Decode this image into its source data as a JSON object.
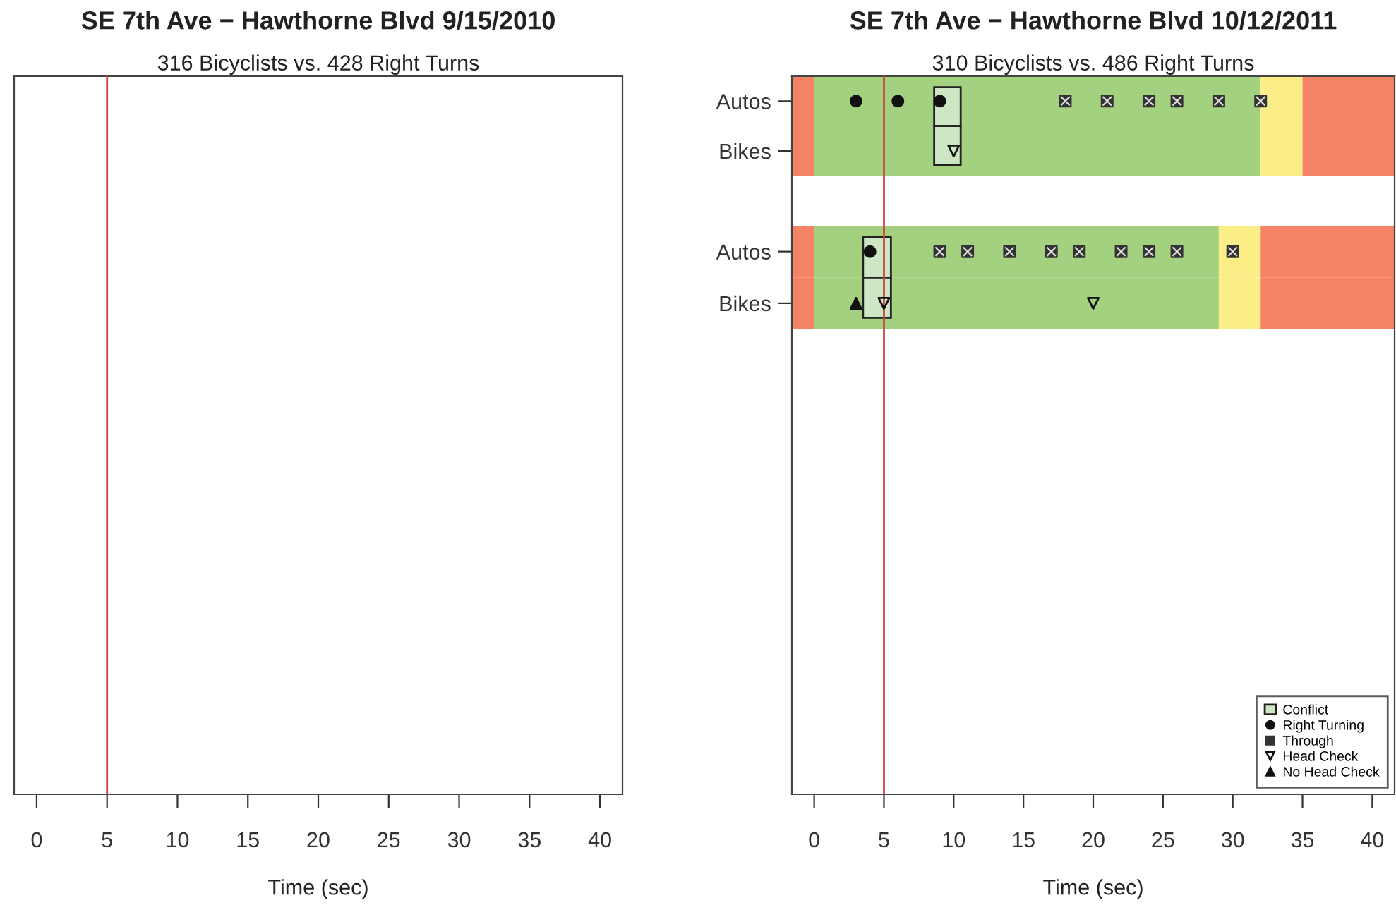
{
  "chart_data": [
    {
      "type": "bar",
      "orientation": "horizontal",
      "title": "SE 7th Ave − Hawthorne Blvd 9/15/2010",
      "subtitle": "316 Bicyclists vs. 428 Right Turns",
      "xlabel": "Time (sec)",
      "xlim": [
        -1.6,
        41.6
      ],
      "xticks": [
        0,
        5,
        10,
        15,
        20,
        25,
        30,
        35,
        40
      ],
      "categories": [
        null
      ],
      "values": [
        null
      ],
      "tick_labels": "x",
      "ref_lines": [
        {
          "axis": "x",
          "value": 5,
          "color": "#c8463c"
        }
      ]
    },
    {
      "type": "bar",
      "orientation": "horizontal",
      "title": "SE 7th Ave − Hawthorne Blvd 10/12/2011",
      "subtitle": "310 Bicyclists vs. 486 Right Turns",
      "xlim": [
        -1.6,
        41.6
      ],
      "xticks": [
        0,
        5,
        10,
        15,
        20,
        25,
        30,
        35,
        40
      ],
      "categories": [
        "Autos",
        "Bikes",
        null
      ],
      "tick_labels": "y",
      "ref_lines": [
        {
          "axis": "x",
          "value": 5,
          "color": "#c8463c"
        }
      ],
      "series": [
        {
          "color": "#f58466",
          "base": [
            -1.6,
            -1.6,
            null
          ],
          "values": [
            1.6,
            1.6,
            null
          ]
        },
        {
          "color": "#a3d17f",
          "base": [
            0,
            0,
            null
          ],
          "values": [
            32,
            32,
            null
          ]
        },
        {
          "color": "#fbee86",
          "base": [
            32,
            32,
            null
          ],
          "values": [
            3,
            3,
            null
          ]
        },
        {
          "color": "#f58466",
          "base": [
            35,
            35,
            null
          ],
          "values": [
            6.6,
            6.6,
            null
          ]
        },
        {
          "color": "#cfe6c4",
          "base": [
            8.6,
            8.6,
            null
          ],
          "values": [
            1.9,
            1.9,
            null
          ]
        },
        {
          "type": "scatter",
          "marker": "circle",
          "color": "#111111",
          "x": [
            "Autos",
            "Autos",
            "Autos"
          ],
          "values": [
            3,
            6,
            9
          ]
        },
        {
          "type": "scatter",
          "marker": "square",
          "color": "#333333",
          "x": [
            "Autos",
            "Autos",
            "Autos",
            "Autos",
            "Autos",
            "Autos"
          ],
          "values": [
            18,
            21,
            24,
            26,
            29,
            32
          ]
        },
        {
          "type": "scatter",
          "marker": "triangle_down",
          "color": "#111111",
          "x": [
            "Bikes"
          ],
          "values": [
            10
          ]
        }
      ]
    },
    {
      "type": "bar",
      "orientation": "horizontal",
      "xlabel": "Time (sec)",
      "xlim": [
        -1.6,
        41.6
      ],
      "xticks": [
        0,
        5,
        10,
        15,
        20,
        25,
        30,
        35,
        40
      ],
      "categories": [
        "Autos",
        "Bikes",
        null,
        null,
        null,
        null,
        null,
        null,
        null,
        null,
        null
      ],
      "legend": "bottom right",
      "ref_lines": [
        {
          "axis": "x",
          "value": 5,
          "color": "#c8463c"
        }
      ],
      "series": [
        {
          "color": "#f58466",
          "base": [
            -1.6,
            -1.6,
            null,
            null,
            null,
            null,
            null,
            null,
            null,
            null,
            null
          ],
          "values": [
            1.6,
            1.6,
            null,
            null,
            null,
            null,
            null,
            null,
            null,
            null,
            null
          ]
        },
        {
          "color": "#a3d17f",
          "base": [
            0,
            0,
            null,
            null,
            null,
            null,
            null,
            null,
            null,
            null,
            null
          ],
          "values": [
            29,
            29,
            null,
            null,
            null,
            null,
            null,
            null,
            null,
            null,
            null
          ]
        },
        {
          "color": "#fbee86",
          "base": [
            29,
            29,
            null,
            null,
            null,
            null,
            null,
            null,
            null,
            null,
            null
          ],
          "values": [
            3,
            3,
            null,
            null,
            null,
            null,
            null,
            null,
            null,
            null,
            null
          ]
        },
        {
          "color": "#f58466",
          "base": [
            32,
            32,
            null,
            null,
            null,
            null,
            null,
            null,
            null,
            null,
            null
          ],
          "values": [
            9.6,
            9.6,
            null,
            null,
            null,
            null,
            null,
            null,
            null,
            null,
            null
          ]
        },
        {
          "name": "Conflict",
          "color": "#cfe6c4",
          "base": [
            3.5,
            3.5,
            null,
            null,
            null,
            null,
            null,
            null,
            null,
            null,
            null
          ],
          "values": [
            2.0,
            2.0,
            null,
            null,
            null,
            null,
            null,
            null,
            null,
            null,
            null
          ]
        },
        {
          "name": "Right Turning",
          "type": "scatter",
          "marker": "circle",
          "color": "#111111",
          "x": [
            "Autos"
          ],
          "values": [
            4
          ]
        },
        {
          "name": "Through",
          "type": "scatter",
          "marker": "square",
          "color": "#333333",
          "x": [
            "Autos",
            "Autos",
            "Autos",
            "Autos",
            "Autos",
            "Autos",
            "Autos",
            "Autos",
            "Autos"
          ],
          "values": [
            9,
            11,
            14,
            17,
            19,
            22,
            24,
            26,
            30
          ]
        },
        {
          "name": "Head Check",
          "type": "scatter",
          "marker": "triangle_down",
          "color": "#111111",
          "x": [
            "Bikes",
            "Bikes"
          ],
          "values": [
            5,
            20
          ]
        },
        {
          "name": "No Head Check",
          "type": "scatter",
          "marker": "triangle",
          "color": "#111111",
          "x": [
            "Bikes"
          ],
          "values": [
            3
          ]
        }
      ]
    }
  ]
}
